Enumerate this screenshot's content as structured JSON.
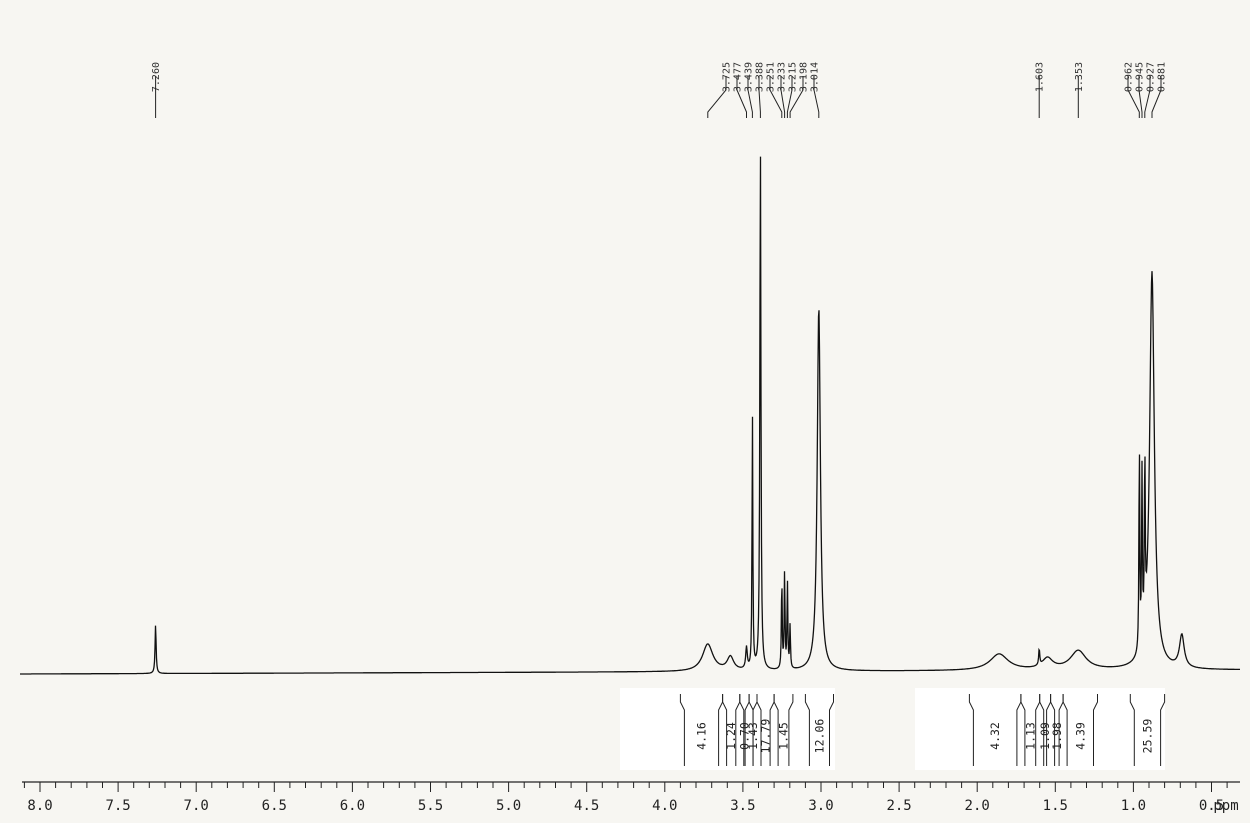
{
  "chart_data": {
    "type": "line",
    "x_unit": "ppm",
    "xlim": [
      8.3,
      -0.35
    ],
    "ylim": [
      0,
      100
    ],
    "x_ticks": [
      "8.0",
      "7.5",
      "7.0",
      "6.5",
      "6.0",
      "5.5",
      "5.0",
      "4.5",
      "4.0",
      "3.5",
      "3.0",
      "2.5",
      "2.0",
      "1.5",
      "1.0",
      "0.5",
      "ppm"
    ],
    "x_tick_values": [
      8.0,
      7.5,
      7.0,
      6.5,
      6.0,
      5.5,
      5.0,
      4.5,
      4.0,
      3.5,
      3.0,
      2.5,
      2.0,
      1.5,
      1.0,
      0.5
    ],
    "peaks": [
      {
        "x": 7.26,
        "y": 9,
        "w": 0.004
      },
      {
        "x": 3.725,
        "y": 5,
        "w": 0.04
      },
      {
        "x": 3.58,
        "y": 2.5,
        "w": 0.025
      },
      {
        "x": 3.477,
        "y": 4,
        "w": 0.006
      },
      {
        "x": 3.439,
        "y": 47,
        "w": 0.003
      },
      {
        "x": 3.388,
        "y": 97,
        "w": 0.004
      },
      {
        "x": 3.251,
        "y": 17,
        "w": 0.003
      },
      {
        "x": 3.233,
        "y": 18,
        "w": 0.003
      },
      {
        "x": 3.215,
        "y": 16,
        "w": 0.003
      },
      {
        "x": 3.198,
        "y": 8,
        "w": 0.003
      },
      {
        "x": 3.014,
        "y": 67,
        "w": 0.012
      },
      {
        "x": 1.86,
        "y": 3,
        "w": 0.07
      },
      {
        "x": 1.603,
        "y": 3,
        "w": 0.004
      },
      {
        "x": 1.55,
        "y": 2,
        "w": 0.04
      },
      {
        "x": 1.353,
        "y": 3.5,
        "w": 0.06
      },
      {
        "x": 0.962,
        "y": 39,
        "w": 0.003
      },
      {
        "x": 0.945,
        "y": 31,
        "w": 0.003
      },
      {
        "x": 0.927,
        "y": 33,
        "w": 0.003
      },
      {
        "x": 0.881,
        "y": 73,
        "w": 0.018
      },
      {
        "x": 0.69,
        "y": 6,
        "w": 0.018
      }
    ],
    "peak_labels": [
      {
        "label": "7.260",
        "x": 7.26
      },
      {
        "label": "3.725",
        "x": 3.725
      },
      {
        "label": "3.477",
        "x": 3.477
      },
      {
        "label": "3.439",
        "x": 3.439
      },
      {
        "label": "3.388",
        "x": 3.388
      },
      {
        "label": "3.251",
        "x": 3.251
      },
      {
        "label": "3.233",
        "x": 3.233
      },
      {
        "label": "3.215",
        "x": 3.215
      },
      {
        "label": "3.198",
        "x": 3.198
      },
      {
        "label": "3.014",
        "x": 3.014
      },
      {
        "label": "1.603",
        "x": 1.603
      },
      {
        "label": "1.353",
        "x": 1.353
      },
      {
        "label": "0.962",
        "x": 0.962
      },
      {
        "label": "0.945",
        "x": 0.945
      },
      {
        "label": "0.927",
        "x": 0.927
      },
      {
        "label": "0.881",
        "x": 0.881
      }
    ],
    "integrals": [
      {
        "value": "4.16",
        "from": 3.9,
        "to": 3.63
      },
      {
        "value": "1.24",
        "from": 3.63,
        "to": 3.52
      },
      {
        "value": "0.70",
        "from": 3.52,
        "to": 3.46
      },
      {
        "value": "1.43",
        "from": 3.46,
        "to": 3.41
      },
      {
        "value": "17.79",
        "from": 3.41,
        "to": 3.3
      },
      {
        "value": "1.45",
        "from": 3.3,
        "to": 3.18
      },
      {
        "value": "12.06",
        "from": 3.1,
        "to": 2.92
      },
      {
        "value": "4.32",
        "from": 2.05,
        "to": 1.72
      },
      {
        "value": "1.13",
        "from": 1.72,
        "to": 1.6
      },
      {
        "value": "1.09",
        "from": 1.6,
        "to": 1.53
      },
      {
        "value": "1.98",
        "from": 1.53,
        "to": 1.45
      },
      {
        "value": "4.39",
        "from": 1.45,
        "to": 1.23
      },
      {
        "value": "25.59",
        "from": 1.02,
        "to": 0.8
      }
    ]
  }
}
